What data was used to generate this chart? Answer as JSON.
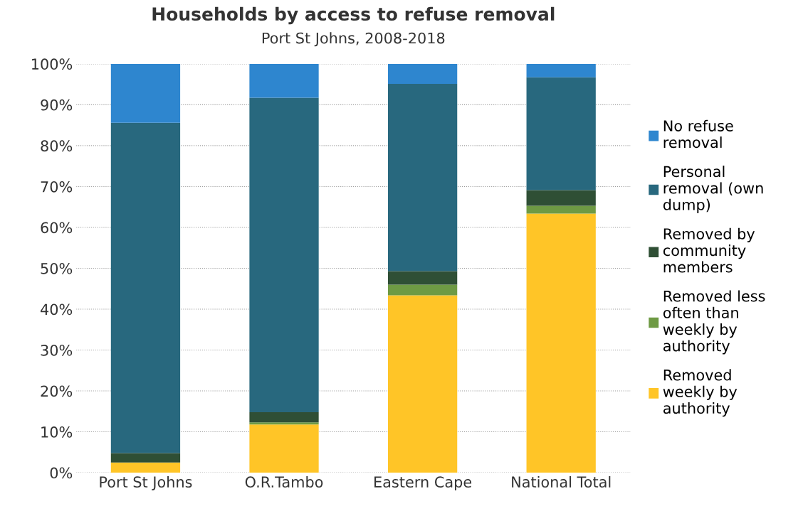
{
  "chart_data": {
    "type": "bar",
    "title": "Households by access to refuse removal",
    "subtitle": "Port St Johns, 2008-2018",
    "categories": [
      "Port St Johns",
      "O.R.Tambo",
      "Eastern Cape",
      "National Total"
    ],
    "stacked": true,
    "series": [
      {
        "name": "Removed\nweekly by\nauthority",
        "color": "#ffc527",
        "values": [
          2.5,
          11.8,
          43.4,
          63.4
        ]
      },
      {
        "name": "Removed less\noften than\nweekly by\nauthority",
        "color": "#6e9a44",
        "values": [
          0,
          0.5,
          2.6,
          1.9
        ]
      },
      {
        "name": "Removed by\ncommunity\nmembers",
        "color": "#2f4f35",
        "values": [
          2.3,
          2.5,
          3.3,
          3.8
        ]
      },
      {
        "name": "Personal\nremoval (own\ndump)",
        "color": "#28687e",
        "values": [
          80.8,
          76.9,
          45.8,
          27.6
        ]
      },
      {
        "name": "No refuse\nremoval",
        "color": "#2e86cf",
        "values": [
          14.4,
          8.3,
          4.9,
          3.3
        ]
      }
    ],
    "ylim": [
      0,
      100
    ],
    "yticks": [
      {
        "value": 0,
        "label": "0%"
      },
      {
        "value": 10,
        "label": "10%"
      },
      {
        "value": 20,
        "label": "20%"
      },
      {
        "value": 30,
        "label": "30%"
      },
      {
        "value": 40,
        "label": "40%"
      },
      {
        "value": 50,
        "label": "50%"
      },
      {
        "value": 60,
        "label": "60%"
      },
      {
        "value": 70,
        "label": "70%"
      },
      {
        "value": 80,
        "label": "80%"
      },
      {
        "value": 90,
        "label": "90%"
      },
      {
        "value": 100,
        "label": "100%"
      }
    ],
    "grid": "y",
    "legend": "right"
  }
}
